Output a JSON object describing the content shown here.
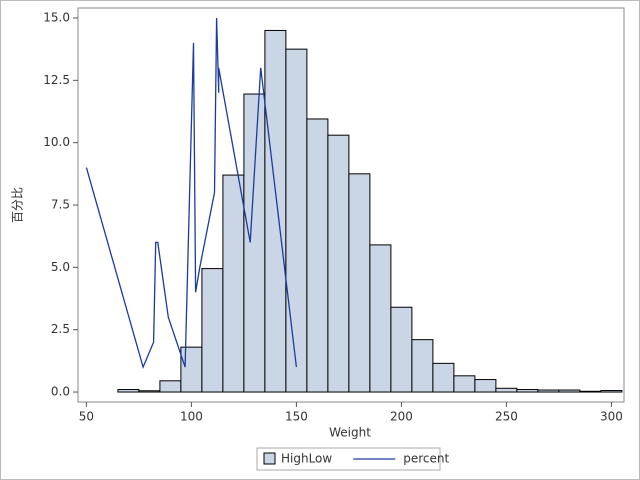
{
  "chart_data": {
    "type": "histogram",
    "xlabel": "Weight",
    "ylabel": "百分比",
    "xlim": [
      46,
      306
    ],
    "ylim": [
      -0.4,
      15.4
    ],
    "xticks": [
      50,
      100,
      150,
      200,
      250,
      300
    ],
    "yticks": [
      {
        "value": 0,
        "label": "0.0"
      },
      2.5,
      {
        "value": 5,
        "label": "5.0"
      },
      7.5,
      {
        "value": 10,
        "label": "10.0"
      },
      12.5,
      {
        "value": 15,
        "label": "15.0"
      }
    ],
    "legend": "bottom",
    "series": [
      {
        "name": "HighLow",
        "type": "histogram",
        "color": "#cad5e5",
        "bins": [
          65,
          75,
          85,
          95,
          105,
          115,
          125,
          135,
          145,
          155,
          165,
          175,
          185,
          195,
          205,
          215,
          225,
          235,
          245,
          255,
          265,
          275,
          285,
          295,
          305
        ],
        "values": [
          0.1,
          0.05,
          0.45,
          1.8,
          4.95,
          8.7,
          11.95,
          14.5,
          13.75,
          10.95,
          10.3,
          8.75,
          5.9,
          3.4,
          2.1,
          1.15,
          0.65,
          0.5,
          0.15,
          0.1,
          0.08,
          0.08,
          0.03,
          0.06
        ]
      },
      {
        "name": "percent",
        "type": "line",
        "color": "#1a3c9c",
        "x": [
          50,
          77,
          82,
          83,
          84,
          89,
          97,
          101,
          102,
          104,
          111,
          112,
          113,
          113,
          128,
          133,
          150
        ],
        "values": [
          9,
          1,
          2,
          6,
          6,
          3,
          1,
          14,
          4,
          5,
          8,
          15,
          12,
          13,
          6,
          13,
          1
        ]
      }
    ]
  }
}
